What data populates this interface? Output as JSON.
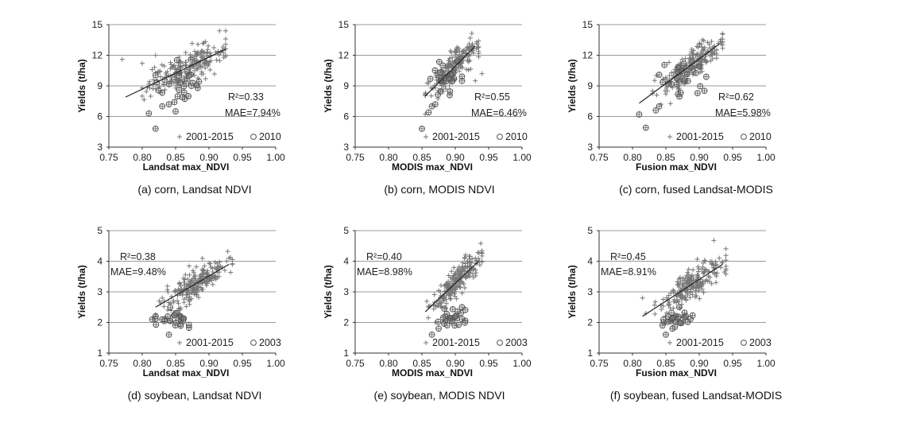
{
  "chart_data": [
    {
      "type": "scatter",
      "caption": "(a) corn, Landsat NDVI",
      "xlabel": "Landsat max_NDVI",
      "ylabel": "Yields (t/ha)",
      "xlim": [
        0.75,
        1.0
      ],
      "ylim": [
        3,
        15
      ],
      "xticks": [
        "0.75",
        "0.80",
        "0.85",
        "0.90",
        "0.95",
        "1.00"
      ],
      "yticks": [
        "3",
        "6",
        "9",
        "12",
        "15"
      ],
      "grid": "horizontal",
      "annotations": {
        "r2": "R²=0.33",
        "mae": "MAE=7.94%"
      },
      "legend": {
        "cross": "2001-2015",
        "circle": "2010"
      },
      "fit": [
        [
          0.775,
          7.9
        ],
        [
          0.925,
          12.6
        ]
      ],
      "background": {
        "x_range": [
          0.8,
          0.925
        ],
        "center": [
          0.865,
          10.5
        ],
        "spread": [
          0.03,
          1.3
        ],
        "count": 220
      },
      "highlight": {
        "x_range": [
          0.81,
          0.91
        ],
        "center": [
          0.86,
          9.0
        ],
        "spread": [
          0.025,
          1.8
        ],
        "count": 25
      },
      "series": [
        {
          "name": "2001-2015",
          "marker": "+",
          "points": [
            [
              0.77,
              11.6
            ],
            [
              0.8,
              11.2
            ],
            [
              0.82,
              12.0
            ],
            [
              0.91,
              12.3
            ],
            [
              0.92,
              12.5
            ]
          ]
        },
        {
          "name": "2010",
          "marker": "o",
          "points": [
            [
              0.81,
              6.3
            ],
            [
              0.82,
              4.8
            ],
            [
              0.83,
              7.0
            ],
            [
              0.84,
              7.2
            ],
            [
              0.85,
              6.5
            ],
            [
              0.86,
              7.9
            ]
          ]
        }
      ]
    },
    {
      "type": "scatter",
      "caption": "(b) corn,  MODIS NDVI",
      "xlabel": "MODIS max_NDVI",
      "ylabel": "Yields (t/ha)",
      "xlim": [
        0.75,
        1.0
      ],
      "ylim": [
        3,
        15
      ],
      "xticks": [
        "0.75",
        "0.80",
        "0.85",
        "0.90",
        "0.95",
        "1.00"
      ],
      "yticks": [
        "3",
        "6",
        "9",
        "12",
        "15"
      ],
      "grid": "horizontal",
      "annotations": {
        "r2": "R²=0.55",
        "mae": "MAE=6.46%"
      },
      "legend": {
        "cross": "2001-2015",
        "circle": "2010"
      },
      "fit": [
        [
          0.855,
          8.0
        ],
        [
          0.93,
          12.9
        ]
      ],
      "background": {
        "x_range": [
          0.855,
          0.935
        ],
        "center": [
          0.895,
          10.8
        ],
        "spread": [
          0.018,
          1.1
        ],
        "count": 220
      },
      "highlight": {
        "x_range": [
          0.855,
          0.91
        ],
        "center": [
          0.885,
          10.0
        ],
        "spread": [
          0.015,
          1.6
        ],
        "count": 25
      },
      "series": [
        {
          "name": "2001-2015",
          "marker": "+",
          "points": [
            [
              0.86,
              9.3
            ],
            [
              0.93,
              9.5
            ],
            [
              0.94,
              10.2
            ],
            [
              0.92,
              12.6
            ]
          ]
        },
        {
          "name": "2010",
          "marker": "o",
          "points": [
            [
              0.85,
              4.8
            ],
            [
              0.86,
              6.4
            ],
            [
              0.865,
              7.0
            ],
            [
              0.87,
              7.2
            ]
          ]
        }
      ]
    },
    {
      "type": "scatter",
      "caption": "(c) corn, fused Landsat-MODIS",
      "xlabel": "Fusion max_NDVI",
      "ylabel": "Yields (t/ha)",
      "xlim": [
        0.75,
        1.0
      ],
      "ylim": [
        3,
        15
      ],
      "xticks": [
        "0.75",
        "0.80",
        "0.85",
        "0.90",
        "0.95",
        "1.00"
      ],
      "yticks": [
        "3",
        "6",
        "9",
        "12",
        "15"
      ],
      "grid": "horizontal",
      "annotations": {
        "r2": "R²=0.62",
        "mae": "MAE=5.98%"
      },
      "legend": {
        "cross": "2001-2015",
        "circle": "2010"
      },
      "fit": [
        [
          0.81,
          7.3
        ],
        [
          0.93,
          13.1
        ]
      ],
      "background": {
        "x_range": [
          0.83,
          0.935
        ],
        "center": [
          0.89,
          10.9
        ],
        "spread": [
          0.022,
          1.1
        ],
        "count": 220
      },
      "highlight": {
        "x_range": [
          0.84,
          0.925
        ],
        "center": [
          0.875,
          10.0
        ],
        "spread": [
          0.02,
          1.5
        ],
        "count": 25
      },
      "series": [
        {
          "name": "2001-2015",
          "marker": "+",
          "points": [
            [
              0.83,
              8.5
            ],
            [
              0.85,
              8.2
            ],
            [
              0.92,
              12.6
            ]
          ]
        },
        {
          "name": "2010",
          "marker": "o",
          "points": [
            [
              0.81,
              6.2
            ],
            [
              0.82,
              4.9
            ],
            [
              0.835,
              6.6
            ],
            [
              0.84,
              7.0
            ]
          ]
        }
      ]
    },
    {
      "type": "scatter",
      "caption": "(d) soybean,  Landsat NDVI",
      "xlabel": "Landsat max_NDVI",
      "ylabel": "Yields (t/ha)",
      "xlim": [
        0.75,
        1.0
      ],
      "ylim": [
        1,
        5
      ],
      "xticks": [
        "0.75",
        "0.80",
        "0.85",
        "0.90",
        "0.95",
        "1.00"
      ],
      "yticks": [
        "1",
        "2",
        "3",
        "4",
        "5"
      ],
      "grid": "horizontal",
      "annotations": {
        "r2": "R²=0.38",
        "mae": "MAE=9.48%"
      },
      "legend": {
        "cross": "2001-2015",
        "circle": "2003"
      },
      "fit": [
        [
          0.82,
          2.5
        ],
        [
          0.93,
          3.9
        ]
      ],
      "background": {
        "x_range": [
          0.82,
          0.935
        ],
        "center": [
          0.88,
          3.4
        ],
        "spread": [
          0.025,
          0.4
        ],
        "count": 220
      },
      "highlight": {
        "x_range": [
          0.82,
          0.87
        ],
        "center": [
          0.85,
          2.1
        ],
        "spread": [
          0.012,
          0.25
        ],
        "count": 25
      },
      "series": [
        {
          "name": "2001-2015",
          "marker": "+",
          "points": [
            [
              0.82,
              2.2
            ],
            [
              0.83,
              2.8
            ],
            [
              0.93,
              4.1
            ],
            [
              0.92,
              3.8
            ]
          ]
        },
        {
          "name": "2003",
          "marker": "o",
          "points": [
            [
              0.815,
              2.1
            ],
            [
              0.83,
              2.1
            ],
            [
              0.84,
              1.6
            ],
            [
              0.85,
              2.3
            ]
          ]
        }
      ]
    },
    {
      "type": "scatter",
      "caption": "(e) soybean,  MODIS NDVI",
      "xlabel": "MODIS max_NDVI",
      "ylabel": "Yields (t/ha)",
      "xlim": [
        0.75,
        1.0
      ],
      "ylim": [
        1,
        5
      ],
      "xticks": [
        "0.75",
        "0.80",
        "0.85",
        "0.90",
        "0.95",
        "1.00"
      ],
      "yticks": [
        "1",
        "2",
        "3",
        "4",
        "5"
      ],
      "grid": "horizontal",
      "annotations": {
        "r2": "R²=0.40",
        "mae": "MAE=8.98%"
      },
      "legend": {
        "cross": "2001-2015",
        "circle": "2003"
      },
      "fit": [
        [
          0.855,
          2.35
        ],
        [
          0.935,
          4.0
        ]
      ],
      "background": {
        "x_range": [
          0.855,
          0.94
        ],
        "center": [
          0.9,
          3.4
        ],
        "spread": [
          0.018,
          0.4
        ],
        "count": 220
      },
      "highlight": {
        "x_range": [
          0.865,
          0.915
        ],
        "center": [
          0.895,
          2.1
        ],
        "spread": [
          0.012,
          0.25
        ],
        "count": 25
      },
      "series": [
        {
          "name": "2001-2015",
          "marker": "+",
          "points": [
            [
              0.86,
              2.5
            ],
            [
              0.87,
              2.0
            ],
            [
              0.93,
              4.1
            ],
            [
              0.94,
              4.0
            ]
          ]
        },
        {
          "name": "2003",
          "marker": "o",
          "points": [
            [
              0.865,
              1.6
            ],
            [
              0.875,
              1.8
            ],
            [
              0.9,
              2.2
            ],
            [
              0.91,
              2.5
            ]
          ]
        }
      ]
    },
    {
      "type": "scatter",
      "caption": "(f) soybean, fused Landsat-MODIS",
      "xlabel": "Fusion max_NDVI",
      "ylabel": "Yields (t/ha)",
      "xlim": [
        0.75,
        1.0
      ],
      "ylim": [
        1,
        5
      ],
      "xticks": [
        "0.75",
        "0.80",
        "0.85",
        "0.90",
        "0.95",
        "1.00"
      ],
      "yticks": [
        "1",
        "2",
        "3",
        "4",
        "5"
      ],
      "grid": "horizontal",
      "annotations": {
        "r2": "R²=0.45",
        "mae": "MAE=8.91%"
      },
      "legend": {
        "cross": "2001-2015",
        "circle": "2003"
      },
      "fit": [
        [
          0.815,
          2.2
        ],
        [
          0.935,
          3.9
        ]
      ],
      "background": {
        "x_range": [
          0.815,
          0.94
        ],
        "center": [
          0.89,
          3.4
        ],
        "spread": [
          0.025,
          0.4
        ],
        "count": 220
      },
      "highlight": {
        "x_range": [
          0.845,
          0.89
        ],
        "center": [
          0.865,
          2.1
        ],
        "spread": [
          0.012,
          0.25
        ],
        "count": 25
      },
      "series": [
        {
          "name": "2001-2015",
          "marker": "+",
          "points": [
            [
              0.815,
              2.8
            ],
            [
              0.82,
              2.3
            ],
            [
              0.93,
              4.1
            ],
            [
              0.94,
              3.7
            ]
          ]
        },
        {
          "name": "2003",
          "marker": "o",
          "points": [
            [
              0.85,
              1.6
            ],
            [
              0.86,
              1.8
            ],
            [
              0.87,
              2.5
            ],
            [
              0.88,
              2.2
            ]
          ]
        }
      ]
    }
  ],
  "colors": {
    "marker": "#777777",
    "grid": "#9a9a9a",
    "fit": "#222222",
    "axis": "#333333",
    "text": "#222222"
  }
}
